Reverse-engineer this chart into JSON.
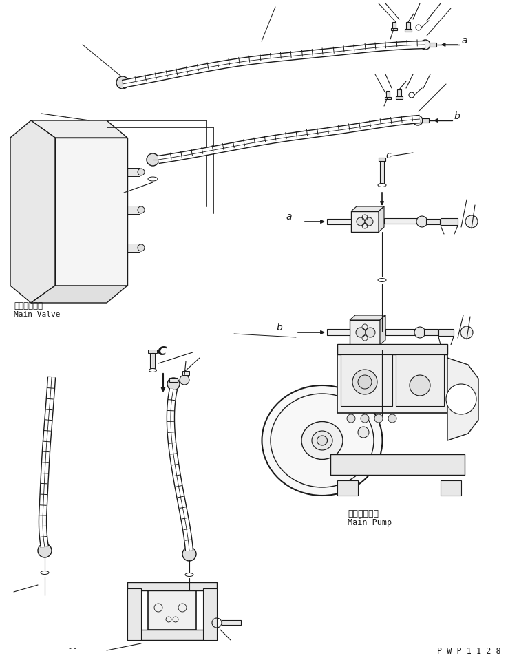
{
  "background_color": "#ffffff",
  "line_color": "#1a1a1a",
  "label_a_top": "a",
  "label_b_top": "b",
  "label_a_mid": "a",
  "label_b_mid": "b",
  "label_c": "C",
  "label_main_valve_jp": "メインバルブ",
  "label_main_valve_en": "Main Valve",
  "label_main_pump_jp": "メインポンプ",
  "label_main_pump_en": "Main Pump",
  "watermark": "P W P 1 1 2 8",
  "fig_width": 7.54,
  "fig_height": 9.59,
  "dpi": 100
}
